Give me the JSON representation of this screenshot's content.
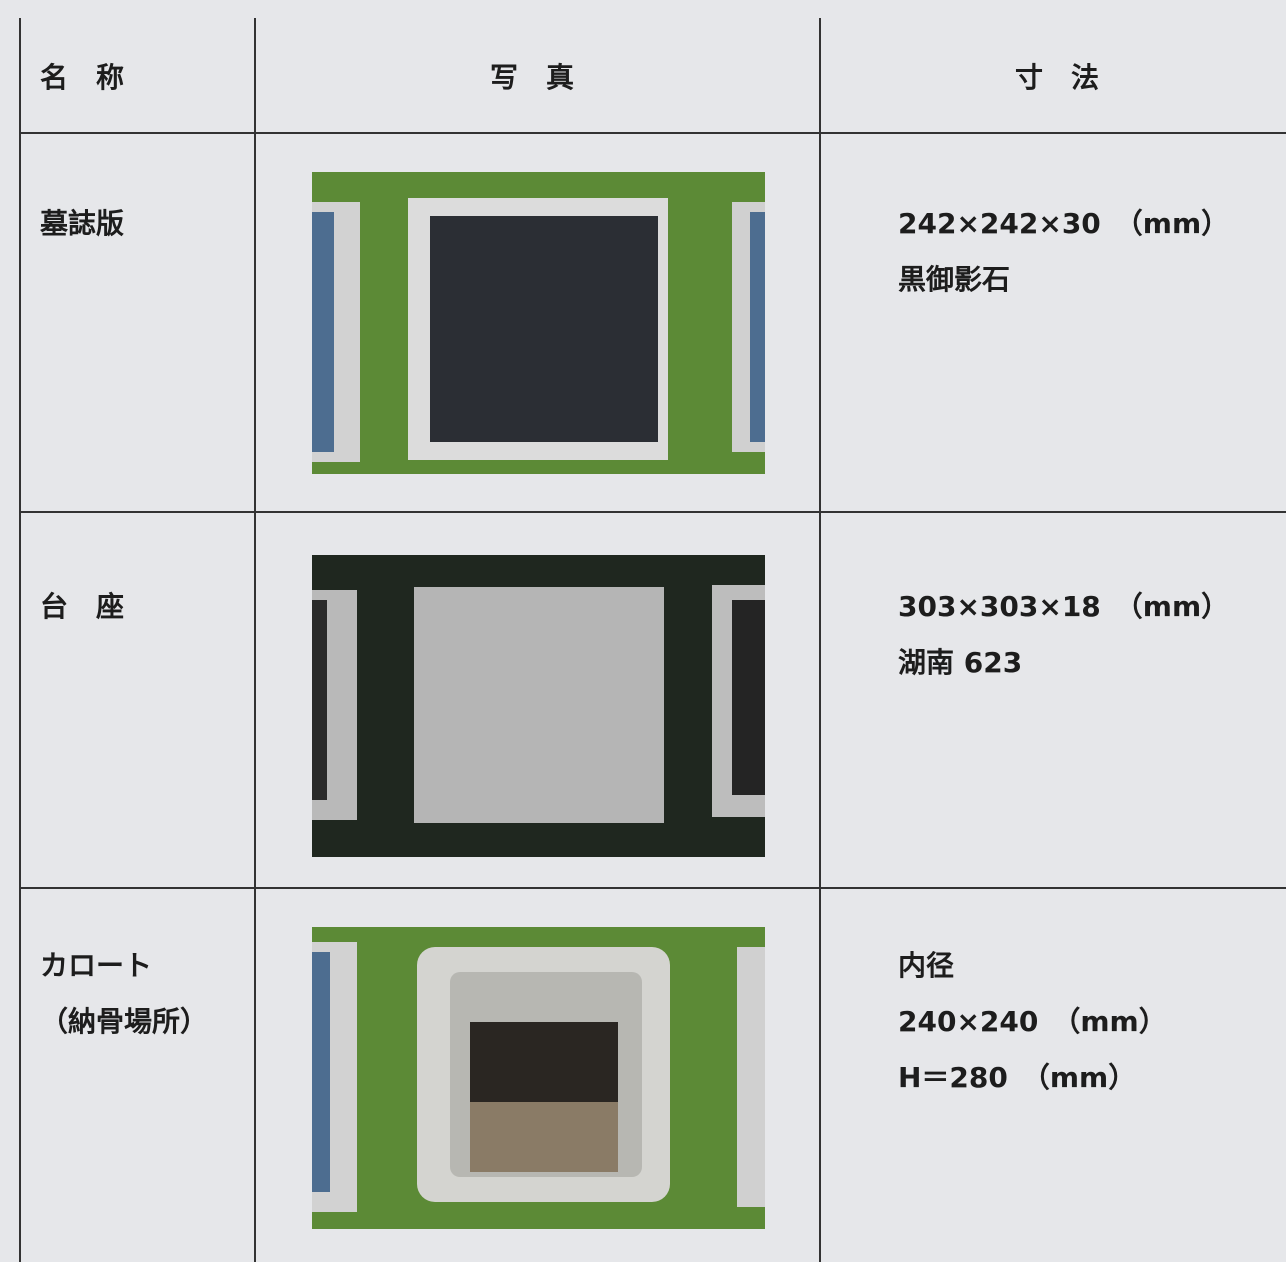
{
  "table": {
    "header": [
      "名　称",
      "写　真",
      "寸　法"
    ],
    "rows": [
      {
        "name": [
          "墓誌版"
        ],
        "details": [
          "242×242×30　（mm）",
          "黒御影石"
        ]
      },
      {
        "name": [
          "台　座"
        ],
        "details": [
          "303×303×18　（mm）",
          "湖南 623"
        ]
      },
      {
        "name": [
          "カロート",
          "（納骨場所）"
        ],
        "details": [
          "内径",
          "240×240　（mm）",
          "H＝280　（mm）"
        ]
      }
    ]
  }
}
